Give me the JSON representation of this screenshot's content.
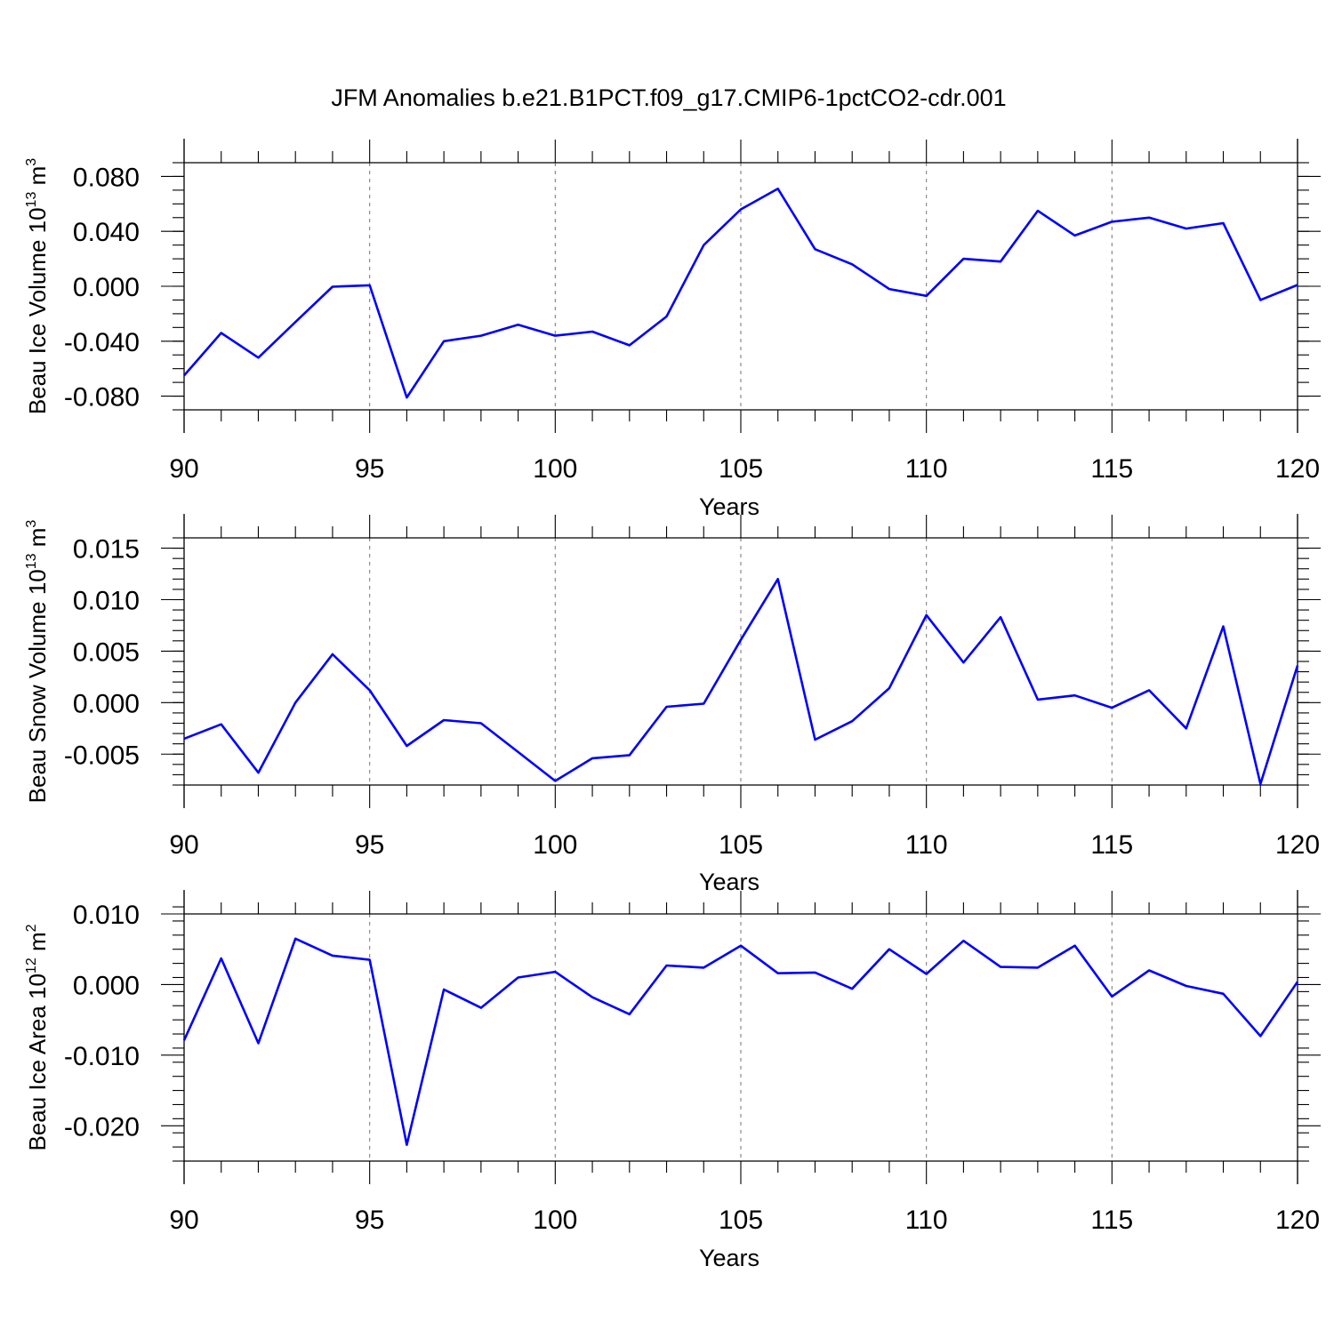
{
  "chart_data": {
    "type": "line",
    "title": "JFM Anomalies b.e21.B1PCT.f09_g17.CMIP6-1pctCO2-cdr.001",
    "line_color": "#0000ff",
    "xlabel": "Years",
    "xlim": [
      90,
      120
    ],
    "xticks": [
      90,
      95,
      100,
      105,
      110,
      115,
      120
    ],
    "x": [
      90,
      91,
      92,
      93,
      94,
      95,
      96,
      97,
      98,
      99,
      100,
      101,
      102,
      103,
      104,
      105,
      106,
      107,
      108,
      109,
      110,
      111,
      112,
      113,
      114,
      115,
      116,
      117,
      118,
      119,
      120
    ],
    "grid": "dashed vertical lines at x ticks",
    "panels": [
      {
        "ylabel_base": "Beau Ice Volume 10",
        "ylabel_exp": "13",
        "ylabel_unit": " m",
        "ylabel_unit_exp": "3",
        "ylim": [
          -0.09,
          0.09
        ],
        "yticks": [
          0.08,
          0.04,
          0.0,
          -0.04,
          -0.08
        ],
        "ytick_labels": [
          "0.080",
          "0.040",
          "0.000",
          "-0.040",
          "-0.080"
        ],
        "minor_step": 0.01,
        "values": [
          -0.065,
          -0.034,
          -0.052,
          -0.026,
          -0.0003,
          0.0007,
          -0.081,
          -0.04,
          -0.036,
          -0.028,
          -0.036,
          -0.033,
          -0.043,
          -0.022,
          0.03,
          0.056,
          0.071,
          0.027,
          0.016,
          -0.002,
          -0.007,
          0.02,
          0.018,
          0.055,
          0.037,
          0.047,
          0.05,
          0.042,
          0.046,
          -0.01,
          0.001
        ]
      },
      {
        "ylabel_base": "Beau Snow Volume 10",
        "ylabel_exp": "13",
        "ylabel_unit": " m",
        "ylabel_unit_exp": "3",
        "ylim": [
          -0.008,
          0.016
        ],
        "yticks": [
          0.015,
          0.01,
          0.005,
          0.0,
          -0.005
        ],
        "ytick_labels": [
          "0.015",
          "0.010",
          "0.005",
          "0.000",
          "-0.005"
        ],
        "minor_step": 0.001,
        "values": [
          -0.0035,
          -0.0021,
          -0.0068,
          0.0,
          0.0047,
          0.0012,
          -0.0042,
          -0.0017,
          -0.002,
          -0.0048,
          -0.0076,
          -0.0054,
          -0.0051,
          -0.0004,
          -0.0001,
          0.0061,
          0.012,
          -0.0036,
          -0.0018,
          0.0014,
          0.0085,
          0.0039,
          0.0083,
          0.0003,
          0.0007,
          -0.0005,
          0.0012,
          -0.0025,
          0.0074,
          -0.0079,
          0.0036
        ]
      },
      {
        "ylabel_base": "Beau Ice Area 10",
        "ylabel_exp": "12",
        "ylabel_unit": " m",
        "ylabel_unit_exp": "2",
        "ylim": [
          -0.025,
          0.01
        ],
        "yticks": [
          0.01,
          0.0,
          -0.01,
          -0.02
        ],
        "ytick_labels": [
          "0.010",
          "0.000",
          "-0.010",
          "-0.020"
        ],
        "minor_step": 0.002,
        "values": [
          -0.0079,
          0.0037,
          -0.0083,
          0.0065,
          0.0041,
          0.0035,
          -0.0227,
          -0.0007,
          -0.0033,
          0.001,
          0.0018,
          -0.0018,
          -0.0042,
          0.0027,
          0.0024,
          0.0055,
          0.0016,
          0.0017,
          -0.0006,
          0.005,
          0.0015,
          0.0062,
          0.0025,
          0.0024,
          0.0055,
          -0.0017,
          0.002,
          -0.0002,
          -0.0013,
          -0.0073,
          0.0004
        ]
      }
    ]
  }
}
